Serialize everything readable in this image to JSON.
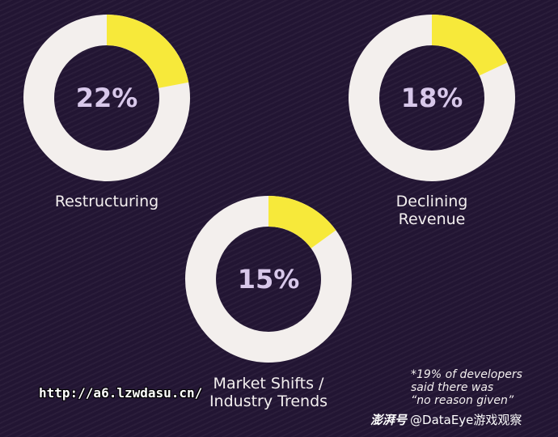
{
  "chart_data": [
    {
      "type": "pie",
      "label": "Restructuring",
      "value": 22,
      "value_text": "22%",
      "highlight_color": "#f7e93a",
      "track_color": "#f3efed"
    },
    {
      "type": "pie",
      "label_lines": [
        "Declining",
        "Revenue"
      ],
      "value": 18,
      "value_text": "18%",
      "highlight_color": "#f7e93a",
      "track_color": "#f3efed"
    },
    {
      "type": "pie",
      "label_lines": [
        "Market Shifts /",
        "Industry Trends"
      ],
      "value": 15,
      "value_text": "15%",
      "highlight_color": "#f7e93a",
      "track_color": "#f3efed"
    }
  ],
  "footnote": {
    "lines": [
      "*19% of developers",
      "said there was",
      "“no reason given”"
    ]
  },
  "overlay_url": "http://a6.lzwdasu.cn/",
  "watermark": {
    "logo_text": "澎湃号",
    "handle": "@DataEye游戏观察"
  }
}
